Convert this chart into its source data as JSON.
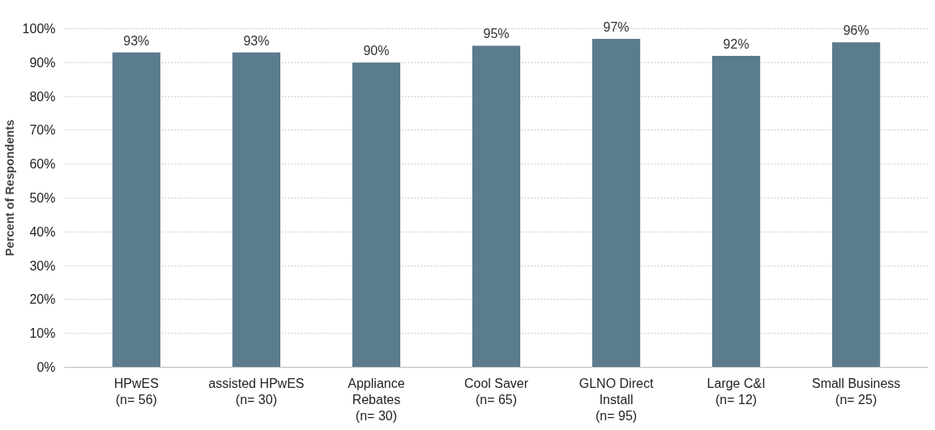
{
  "chart_data": {
    "type": "bar",
    "ylabel": "Percent of Respondents",
    "categories": [
      "HPwES\n(n= 56)",
      "assisted HPwES\n(n= 30)",
      "Appliance\nRebates\n(n= 30)",
      "Cool Saver\n(n= 65)",
      "GLNO Direct\nInstall\n(n= 95)",
      "Large C&I\n(n= 12)",
      "Small Business\n(n= 25)"
    ],
    "values": [
      93,
      93,
      90,
      95,
      97,
      92,
      96
    ],
    "color": "#5b7b8e",
    "value_labels": [
      "93%",
      "93%",
      "90%",
      "95%",
      "97%",
      "92%",
      "96%"
    ],
    "ylim": [
      0,
      100
    ],
    "yticks": [
      {
        "value": 0,
        "label": "0%"
      },
      {
        "value": 10,
        "label": "10%"
      },
      {
        "value": 20,
        "label": "20%"
      },
      {
        "value": 30,
        "label": "30%"
      },
      {
        "value": 40,
        "label": "40%"
      },
      {
        "value": 50,
        "label": "50%"
      },
      {
        "value": 60,
        "label": "60%"
      },
      {
        "value": 70,
        "label": "70%"
      },
      {
        "value": 80,
        "label": "80%"
      },
      {
        "value": 90,
        "label": "90%"
      },
      {
        "value": 100,
        "label": "100%"
      }
    ],
    "grid": "y"
  }
}
